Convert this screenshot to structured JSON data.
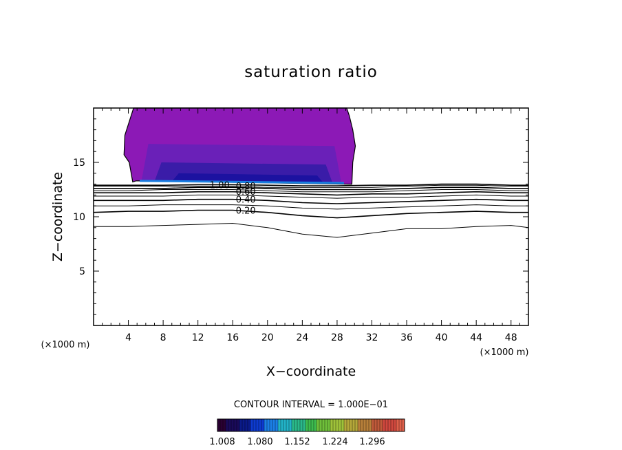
{
  "chart_data": {
    "type": "contour",
    "title": "saturation ratio",
    "xlabel": "X−coordinate",
    "ylabel": "Z−coordinate",
    "x_unit": "(×1000 m)",
    "z_unit": "(×1000 m)",
    "xlim": [
      0,
      50
    ],
    "ylim": [
      0,
      20
    ],
    "x_ticks": [
      4,
      8,
      12,
      16,
      20,
      24,
      28,
      32,
      36,
      40,
      44,
      48
    ],
    "y_ticks": [
      5,
      10,
      15
    ],
    "contour_interval_text": "CONTOUR INTERVAL = 1.000E−01",
    "contour_labels": [
      "1.00",
      "0.80",
      "0.60",
      "0.40",
      "0.20"
    ],
    "contour_lines": [
      {
        "level": 0.1,
        "x": [
          0,
          4,
          8,
          12,
          16,
          20,
          24,
          28,
          32,
          36,
          40,
          44,
          48,
          50
        ],
        "z": [
          9.1,
          9.1,
          9.2,
          9.3,
          9.4,
          9.0,
          8.4,
          8.1,
          8.5,
          8.9,
          8.9,
          9.1,
          9.2,
          9.0
        ]
      },
      {
        "level": 0.2,
        "x": [
          0,
          4,
          8,
          12,
          16,
          20,
          24,
          28,
          32,
          36,
          40,
          44,
          48,
          50
        ],
        "z": [
          10.4,
          10.5,
          10.5,
          10.6,
          10.6,
          10.4,
          10.1,
          9.9,
          10.1,
          10.3,
          10.4,
          10.5,
          10.4,
          10.4
        ]
      },
      {
        "level": 0.3,
        "x": [
          0,
          4,
          8,
          12,
          16,
          20,
          24,
          28,
          32,
          36,
          40,
          44,
          48,
          50
        ],
        "z": [
          11.0,
          11.0,
          11.1,
          11.1,
          11.1,
          11.0,
          10.8,
          10.7,
          10.8,
          10.9,
          11.0,
          11.1,
          11.0,
          11.0
        ]
      },
      {
        "level": 0.4,
        "x": [
          0,
          4,
          8,
          12,
          16,
          20,
          24,
          28,
          32,
          36,
          40,
          44,
          48,
          50
        ],
        "z": [
          11.5,
          11.5,
          11.5,
          11.6,
          11.6,
          11.5,
          11.3,
          11.2,
          11.3,
          11.4,
          11.5,
          11.6,
          11.5,
          11.5
        ]
      },
      {
        "level": 0.5,
        "x": [
          0,
          4,
          8,
          12,
          16,
          20,
          24,
          28,
          32,
          36,
          40,
          44,
          48,
          50
        ],
        "z": [
          11.9,
          11.9,
          11.9,
          12.0,
          12.0,
          11.9,
          11.8,
          11.7,
          11.8,
          11.8,
          11.9,
          12.0,
          11.9,
          11.9
        ]
      },
      {
        "level": 0.6,
        "x": [
          0,
          4,
          8,
          12,
          16,
          20,
          24,
          28,
          32,
          36,
          40,
          44,
          48,
          50
        ],
        "z": [
          12.2,
          12.2,
          12.2,
          12.3,
          12.3,
          12.2,
          12.1,
          12.0,
          12.1,
          12.1,
          12.2,
          12.3,
          12.2,
          12.2
        ]
      },
      {
        "level": 0.7,
        "x": [
          0,
          4,
          8,
          12,
          16,
          20,
          24,
          28,
          32,
          36,
          40,
          44,
          48,
          50
        ],
        "z": [
          12.4,
          12.4,
          12.5,
          12.5,
          12.5,
          12.4,
          12.3,
          12.3,
          12.3,
          12.4,
          12.5,
          12.5,
          12.4,
          12.4
        ]
      },
      {
        "level": 0.8,
        "x": [
          0,
          4,
          8,
          12,
          16,
          20,
          24,
          28,
          32,
          36,
          40,
          44,
          48,
          50
        ],
        "z": [
          12.6,
          12.6,
          12.6,
          12.7,
          12.7,
          12.6,
          12.5,
          12.5,
          12.5,
          12.6,
          12.7,
          12.7,
          12.6,
          12.6
        ]
      },
      {
        "level": 0.9,
        "x": [
          0,
          4,
          8,
          12,
          16,
          20,
          24,
          28,
          32,
          36,
          40,
          44,
          48,
          50
        ],
        "z": [
          12.8,
          12.8,
          12.8,
          12.8,
          12.8,
          12.7,
          12.7,
          12.7,
          12.7,
          12.8,
          12.9,
          12.9,
          12.8,
          12.8
        ]
      },
      {
        "level": 1.0,
        "x": [
          0,
          4,
          8,
          12,
          16,
          20,
          24,
          28,
          32,
          36,
          40,
          44,
          48,
          50
        ],
        "z": [
          12.9,
          12.9,
          12.9,
          12.95,
          12.95,
          12.9,
          12.85,
          12.85,
          12.9,
          12.9,
          13.0,
          13.0,
          12.9,
          12.9
        ]
      }
    ],
    "supersaturated_region": {
      "x": [
        4.5,
        4.9,
        5.2,
        29.0,
        29.7,
        29.8,
        30.1,
        29.8,
        29.4,
        29.1,
        4.6,
        3.6,
        3.5,
        4.1
      ],
      "z": [
        13.2,
        13.3,
        13.3,
        13.0,
        13.0,
        15.0,
        16.5,
        18.0,
        19.3,
        20.0,
        20.0,
        17.5,
        15.7,
        15.0
      ]
    },
    "color_levels": [
      1.008,
      1.08,
      1.152,
      1.224,
      1.296
    ],
    "colorbar_ticks": [
      "1.008",
      "1.080",
      "1.152",
      "1.224",
      "1.296"
    ],
    "colorbar_colors": [
      "#2a0033",
      "#1a0a5a",
      "#0a1a8a",
      "#0d3bd0",
      "#1b7fe6",
      "#22b3c8",
      "#2ab88a",
      "#3dbb4f",
      "#6fbf3a",
      "#9fc23a",
      "#b5a83a",
      "#b8803a",
      "#c05a3a",
      "#d0483e",
      "#e0604a"
    ],
    "fill_colors": {
      "outer": "#8c19b6",
      "mid": "#6a20b8",
      "inner": "#3a1ca8",
      "core": "#1c12a0",
      "edge": "#1a7fe0"
    }
  }
}
